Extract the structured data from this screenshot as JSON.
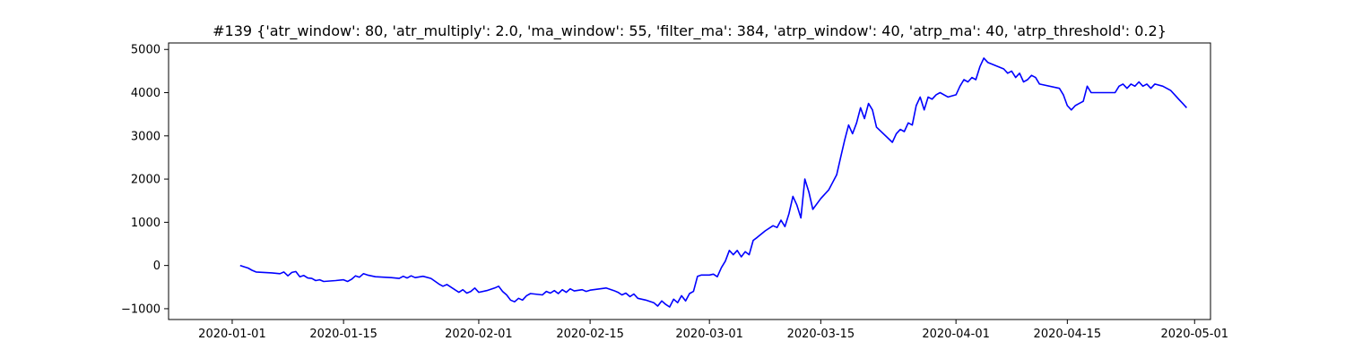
{
  "chart_data": {
    "type": "line",
    "title": "#139 {'atr_window': 80, 'atr_multiply': 2.0, 'ma_window': 55, 'filter_ma': 384, 'atrp_window': 40, 'atrp_ma': 40, 'atrp_threshold': 0.2}",
    "xlabel": "",
    "ylabel": "",
    "x_type": "date",
    "xlim": [
      "2019-12-24",
      "2020-05-03"
    ],
    "ylim": [
      -1250,
      5150
    ],
    "grid": false,
    "line_color": "#0000ff",
    "x_ticks": [
      "2020-01-01",
      "2020-01-15",
      "2020-02-01",
      "2020-02-15",
      "2020-03-01",
      "2020-03-15",
      "2020-04-01",
      "2020-04-15",
      "2020-05-01"
    ],
    "y_ticks": [
      -1000,
      0,
      1000,
      2000,
      3000,
      4000,
      5000
    ],
    "series": [
      {
        "name": "",
        "points": [
          [
            "2020-01-02",
            0
          ],
          [
            "2020-01-02T12:00",
            -30
          ],
          [
            "2020-01-03",
            -60
          ],
          [
            "2020-01-03T12:00",
            -110
          ],
          [
            "2020-01-04",
            -150
          ],
          [
            "2020-01-05",
            -160
          ],
          [
            "2020-01-06",
            -170
          ],
          [
            "2020-01-07",
            -190
          ],
          [
            "2020-01-07T12:00",
            -150
          ],
          [
            "2020-01-08",
            -240
          ],
          [
            "2020-01-08T12:00",
            -160
          ],
          [
            "2020-01-09",
            -140
          ],
          [
            "2020-01-09T12:00",
            -260
          ],
          [
            "2020-01-10",
            -230
          ],
          [
            "2020-01-10T12:00",
            -290
          ],
          [
            "2020-01-11",
            -300
          ],
          [
            "2020-01-11T12:00",
            -350
          ],
          [
            "2020-01-12",
            -330
          ],
          [
            "2020-01-12T12:00",
            -370
          ],
          [
            "2020-01-14",
            -350
          ],
          [
            "2020-01-15",
            -330
          ],
          [
            "2020-01-15T12:00",
            -370
          ],
          [
            "2020-01-16",
            -320
          ],
          [
            "2020-01-16T12:00",
            -240
          ],
          [
            "2020-01-17",
            -270
          ],
          [
            "2020-01-17T12:00",
            -190
          ],
          [
            "2020-01-18",
            -220
          ],
          [
            "2020-01-19",
            -260
          ],
          [
            "2020-01-20",
            -270
          ],
          [
            "2020-01-21",
            -280
          ],
          [
            "2020-01-22",
            -300
          ],
          [
            "2020-01-22T12:00",
            -250
          ],
          [
            "2020-01-23",
            -290
          ],
          [
            "2020-01-23T12:00",
            -240
          ],
          [
            "2020-01-24",
            -280
          ],
          [
            "2020-01-25",
            -250
          ],
          [
            "2020-01-26",
            -300
          ],
          [
            "2020-01-27",
            -430
          ],
          [
            "2020-01-27T12:00",
            -480
          ],
          [
            "2020-01-28",
            -440
          ],
          [
            "2020-01-28T12:00",
            -500
          ],
          [
            "2020-01-29",
            -560
          ],
          [
            "2020-01-29T12:00",
            -620
          ],
          [
            "2020-01-30",
            -560
          ],
          [
            "2020-01-30T12:00",
            -640
          ],
          [
            "2020-01-31",
            -600
          ],
          [
            "2020-01-31T12:00",
            -520
          ],
          [
            "2020-02-01",
            -620
          ],
          [
            "2020-02-02",
            -580
          ],
          [
            "2020-02-03",
            -520
          ],
          [
            "2020-02-03T12:00",
            -480
          ],
          [
            "2020-02-04",
            -600
          ],
          [
            "2020-02-04T12:00",
            -680
          ],
          [
            "2020-02-05",
            -800
          ],
          [
            "2020-02-05T12:00",
            -840
          ],
          [
            "2020-02-06",
            -760
          ],
          [
            "2020-02-06T12:00",
            -800
          ],
          [
            "2020-02-07",
            -700
          ],
          [
            "2020-02-07T12:00",
            -650
          ],
          [
            "2020-02-08",
            -660
          ],
          [
            "2020-02-09",
            -680
          ],
          [
            "2020-02-09T12:00",
            -600
          ],
          [
            "2020-02-10",
            -640
          ],
          [
            "2020-02-10T12:00",
            -580
          ],
          [
            "2020-02-11",
            -650
          ],
          [
            "2020-02-11T12:00",
            -560
          ],
          [
            "2020-02-12",
            -620
          ],
          [
            "2020-02-12T12:00",
            -540
          ],
          [
            "2020-02-13",
            -590
          ],
          [
            "2020-02-14",
            -560
          ],
          [
            "2020-02-14T12:00",
            -600
          ],
          [
            "2020-02-15",
            -570
          ],
          [
            "2020-02-17",
            -520
          ],
          [
            "2020-02-18",
            -580
          ],
          [
            "2020-02-18T12:00",
            -620
          ],
          [
            "2020-02-19",
            -680
          ],
          [
            "2020-02-19T12:00",
            -640
          ],
          [
            "2020-02-20",
            -720
          ],
          [
            "2020-02-20T12:00",
            -660
          ],
          [
            "2020-02-21",
            -760
          ],
          [
            "2020-02-22",
            -800
          ],
          [
            "2020-02-23",
            -860
          ],
          [
            "2020-02-23T12:00",
            -940
          ],
          [
            "2020-02-24",
            -820
          ],
          [
            "2020-02-24T12:00",
            -900
          ],
          [
            "2020-02-25",
            -960
          ],
          [
            "2020-02-25T12:00",
            -780
          ],
          [
            "2020-02-26",
            -860
          ],
          [
            "2020-02-26T12:00",
            -700
          ],
          [
            "2020-02-27",
            -820
          ],
          [
            "2020-02-27T12:00",
            -650
          ],
          [
            "2020-02-28",
            -600
          ],
          [
            "2020-02-28T12:00",
            -250
          ],
          [
            "2020-02-29",
            -220
          ],
          [
            "2020-03-01",
            -220
          ],
          [
            "2020-03-01T12:00",
            -200
          ],
          [
            "2020-03-02",
            -260
          ],
          [
            "2020-03-02T12:00",
            -50
          ],
          [
            "2020-03-03",
            100
          ],
          [
            "2020-03-03T12:00",
            350
          ],
          [
            "2020-03-04",
            250
          ],
          [
            "2020-03-04T12:00",
            350
          ],
          [
            "2020-03-05",
            200
          ],
          [
            "2020-03-05T12:00",
            320
          ],
          [
            "2020-03-06",
            250
          ],
          [
            "2020-03-06T12:00",
            580
          ],
          [
            "2020-03-07",
            650
          ],
          [
            "2020-03-08",
            800
          ],
          [
            "2020-03-09",
            920
          ],
          [
            "2020-03-09T12:00",
            880
          ],
          [
            "2020-03-10",
            1050
          ],
          [
            "2020-03-10T12:00",
            900
          ],
          [
            "2020-03-11",
            1200
          ],
          [
            "2020-03-11T12:00",
            1600
          ],
          [
            "2020-03-12",
            1400
          ],
          [
            "2020-03-12T12:00",
            1100
          ],
          [
            "2020-03-13",
            2000
          ],
          [
            "2020-03-13T12:00",
            1700
          ],
          [
            "2020-03-14",
            1300
          ],
          [
            "2020-03-15",
            1550
          ],
          [
            "2020-03-16",
            1750
          ],
          [
            "2020-03-17",
            2100
          ],
          [
            "2020-03-17T12:00",
            2500
          ],
          [
            "2020-03-18",
            2900
          ],
          [
            "2020-03-18T12:00",
            3250
          ],
          [
            "2020-03-19",
            3050
          ],
          [
            "2020-03-19T12:00",
            3300
          ],
          [
            "2020-03-20",
            3650
          ],
          [
            "2020-03-20T12:00",
            3400
          ],
          [
            "2020-03-21",
            3750
          ],
          [
            "2020-03-21T12:00",
            3600
          ],
          [
            "2020-03-22",
            3200
          ],
          [
            "2020-03-24",
            2850
          ],
          [
            "2020-03-24T12:00",
            3050
          ],
          [
            "2020-03-25",
            3150
          ],
          [
            "2020-03-25T12:00",
            3100
          ],
          [
            "2020-03-26",
            3300
          ],
          [
            "2020-03-26T12:00",
            3250
          ],
          [
            "2020-03-27",
            3700
          ],
          [
            "2020-03-27T12:00",
            3900
          ],
          [
            "2020-03-28",
            3600
          ],
          [
            "2020-03-28T12:00",
            3900
          ],
          [
            "2020-03-29",
            3850
          ],
          [
            "2020-03-29T12:00",
            3950
          ],
          [
            "2020-03-30",
            4000
          ],
          [
            "2020-03-31",
            3900
          ],
          [
            "2020-04-01",
            3950
          ],
          [
            "2020-04-01T12:00",
            4150
          ],
          [
            "2020-04-02",
            4300
          ],
          [
            "2020-04-02T12:00",
            4250
          ],
          [
            "2020-04-03",
            4350
          ],
          [
            "2020-04-03T12:00",
            4300
          ],
          [
            "2020-04-04",
            4600
          ],
          [
            "2020-04-04T12:00",
            4800
          ],
          [
            "2020-04-05",
            4700
          ],
          [
            "2020-04-07",
            4550
          ],
          [
            "2020-04-07T12:00",
            4450
          ],
          [
            "2020-04-08",
            4500
          ],
          [
            "2020-04-08T12:00",
            4350
          ],
          [
            "2020-04-09",
            4450
          ],
          [
            "2020-04-09T12:00",
            4250
          ],
          [
            "2020-04-10",
            4300
          ],
          [
            "2020-04-10T12:00",
            4400
          ],
          [
            "2020-04-11",
            4350
          ],
          [
            "2020-04-11T12:00",
            4200
          ],
          [
            "2020-04-14",
            4100
          ],
          [
            "2020-04-14T12:00",
            3950
          ],
          [
            "2020-04-15",
            3700
          ],
          [
            "2020-04-15T12:00",
            3600
          ],
          [
            "2020-04-16",
            3700
          ],
          [
            "2020-04-16T12:00",
            3750
          ],
          [
            "2020-04-17",
            3800
          ],
          [
            "2020-04-17T12:00",
            4150
          ],
          [
            "2020-04-18",
            4000
          ],
          [
            "2020-04-21",
            4000
          ],
          [
            "2020-04-21T12:00",
            4150
          ],
          [
            "2020-04-22",
            4200
          ],
          [
            "2020-04-22T12:00",
            4100
          ],
          [
            "2020-04-23",
            4200
          ],
          [
            "2020-04-23T12:00",
            4150
          ],
          [
            "2020-04-24",
            4250
          ],
          [
            "2020-04-24T12:00",
            4150
          ],
          [
            "2020-04-25",
            4200
          ],
          [
            "2020-04-25T12:00",
            4100
          ],
          [
            "2020-04-26",
            4200
          ],
          [
            "2020-04-27",
            4150
          ],
          [
            "2020-04-28",
            4050
          ],
          [
            "2020-04-28T12:00",
            3950
          ],
          [
            "2020-04-29",
            3850
          ],
          [
            "2020-04-29T12:00",
            3750
          ],
          [
            "2020-04-30",
            3650
          ]
        ]
      }
    ]
  }
}
